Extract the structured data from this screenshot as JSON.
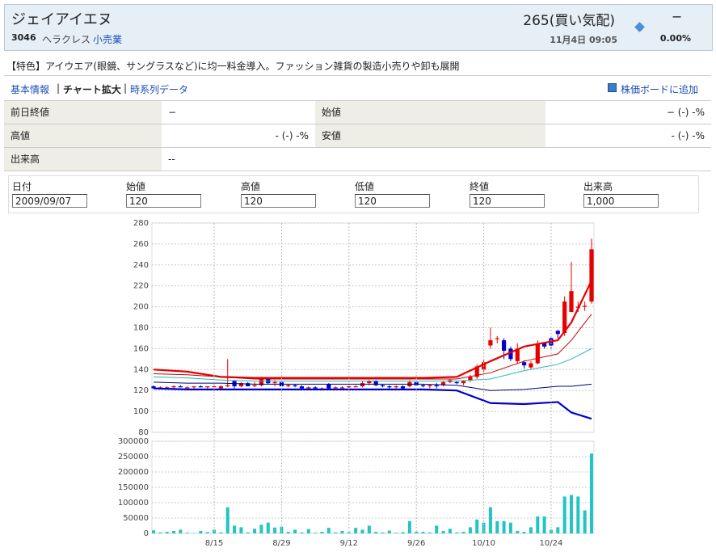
{
  "header": {
    "title": "ジェイアイエヌ",
    "code": "3046",
    "market": "ヘラクレス",
    "sector": "小売業",
    "price": "265(買い気配)",
    "change": "−",
    "datetime": "11月4日 09:05",
    "change_pct": "0.00%"
  },
  "feature": "【特色】アイウエア(眼鏡、サングラスなど)に均一料金導入。ファッション雑貨の製造小売りや卸も展開",
  "tabs": [
    "基本情報",
    "チャート拡大",
    "時系列データ"
  ],
  "add_link": "株価ボードに追加",
  "quote_table": {
    "rows": [
      [
        "前日終値",
        "−",
        "始値",
        "− (-) -%"
      ],
      [
        "高値",
        "- (-) -%",
        "安値",
        "- (-) -%"
      ],
      [
        "出来高",
        "--"
      ]
    ]
  },
  "form": {
    "labels": [
      "日付",
      "始値",
      "高値",
      "低値",
      "終値",
      "出来高"
    ],
    "values": [
      "2009/09/07",
      "120",
      "120",
      "120",
      "120",
      "1,000"
    ]
  },
  "chart_data": [
    {
      "type": "candlestick",
      "up_color": "#e60000",
      "down_color": "#0000cc",
      "grid": true,
      "ylim": [
        80,
        280
      ],
      "yticks": [
        80,
        100,
        120,
        140,
        160,
        180,
        200,
        220,
        240,
        260,
        280
      ],
      "open": [
        124,
        122,
        123,
        123,
        124,
        123,
        123,
        124,
        123,
        124,
        122,
        124,
        129,
        124,
        127,
        124,
        125,
        131,
        127,
        128,
        124,
        125,
        124,
        122,
        123,
        122,
        126,
        123,
        123,
        123,
        124,
        124,
        127,
        129,
        125,
        124,
        123,
        124,
        124,
        128,
        125,
        124,
        125,
        125,
        128,
        128,
        127,
        130,
        133,
        140,
        163,
        170,
        168,
        160,
        148,
        147,
        142,
        146,
        165,
        170,
        177,
        175,
        195,
        200,
        200,
        205
      ],
      "high": [
        125,
        124,
        124,
        125,
        125,
        124,
        124,
        125,
        124,
        126,
        125,
        150,
        130,
        128,
        128,
        128,
        133,
        132,
        130,
        129,
        126,
        126,
        125,
        124,
        124,
        123,
        127,
        124,
        124,
        125,
        125,
        129,
        130,
        130,
        126,
        125,
        125,
        125,
        130,
        129,
        126,
        126,
        127,
        129,
        131,
        129,
        130,
        135,
        145,
        150,
        180,
        172,
        170,
        162,
        165,
        149,
        148,
        168,
        166,
        172,
        178,
        210,
        243,
        205,
        205,
        265
      ],
      "low": [
        122,
        121,
        122,
        122,
        123,
        122,
        122,
        123,
        122,
        123,
        121,
        123,
        122,
        123,
        124,
        123,
        124,
        126,
        124,
        124,
        123,
        123,
        121,
        121,
        121,
        121,
        121,
        122,
        122,
        122,
        123,
        123,
        125,
        124,
        123,
        122,
        122,
        121,
        123,
        124,
        123,
        122,
        122,
        124,
        127,
        126,
        125,
        128,
        131,
        138,
        160,
        165,
        150,
        148,
        146,
        141,
        140,
        145,
        160,
        160,
        170,
        172,
        195,
        195,
        196,
        203
      ],
      "close": [
        122,
        123,
        123,
        124,
        123,
        123,
        124,
        123,
        124,
        124,
        124,
        125,
        124,
        127,
        124,
        125,
        131,
        127,
        128,
        124,
        125,
        124,
        122,
        123,
        122,
        122,
        122,
        123,
        123,
        124,
        124,
        127,
        129,
        125,
        124,
        123,
        124,
        122,
        128,
        125,
        124,
        125,
        124,
        128,
        130,
        127,
        129,
        133,
        143,
        147,
        168,
        170,
        158,
        150,
        160,
        144,
        146,
        165,
        162,
        163,
        174,
        205,
        215,
        200,
        201,
        255
      ],
      "lines": [
        {
          "color": "#e60000",
          "width": 2.2,
          "x": [
            0,
            5,
            10,
            15,
            20,
            25,
            30,
            35,
            40,
            45,
            50,
            55,
            60,
            62,
            65
          ],
          "values": [
            140,
            138,
            133,
            132,
            132,
            132,
            132,
            132,
            132,
            133,
            148,
            162,
            168,
            185,
            225
          ]
        },
        {
          "color": "#cc0000",
          "width": 1,
          "x": [
            0,
            5,
            10,
            15,
            20,
            25,
            30,
            35,
            40,
            45,
            50,
            55,
            60,
            62,
            65
          ],
          "values": [
            136,
            135,
            133,
            131,
            131,
            131,
            131,
            131,
            131,
            131,
            137,
            148,
            155,
            168,
            193
          ]
        },
        {
          "color": "#20b8b8",
          "width": 1,
          "x": [
            0,
            5,
            10,
            15,
            20,
            25,
            30,
            35,
            40,
            45,
            50,
            55,
            60,
            62,
            65
          ],
          "values": [
            133,
            132,
            130,
            129,
            129,
            129,
            129,
            129,
            129,
            129,
            131,
            139,
            145,
            150,
            160
          ]
        },
        {
          "color": "#000080",
          "width": 1,
          "x": [
            0,
            5,
            10,
            15,
            20,
            25,
            30,
            35,
            40,
            45,
            50,
            55,
            60,
            62,
            65
          ],
          "values": [
            128,
            127,
            127,
            126,
            126,
            126,
            126,
            126,
            126,
            125,
            120,
            121,
            124,
            124,
            126
          ]
        },
        {
          "color": "#0000cc",
          "width": 2.2,
          "x": [
            0,
            5,
            10,
            15,
            20,
            25,
            30,
            35,
            40,
            45,
            50,
            55,
            60,
            62,
            65
          ],
          "values": [
            122,
            121,
            121,
            121,
            121,
            121,
            121,
            121,
            121,
            120,
            108,
            107,
            109,
            99,
            93
          ]
        }
      ]
    },
    {
      "type": "bar",
      "color": "#22c4c4",
      "grid": true,
      "ylim": [
        0,
        300000
      ],
      "yticks": [
        0,
        50000,
        100000,
        150000,
        200000,
        250000,
        300000
      ],
      "categories": [
        null,
        null,
        null,
        null,
        null,
        null,
        null,
        null,
        null,
        "8/15",
        null,
        null,
        null,
        null,
        null,
        null,
        null,
        null,
        null,
        "8/29",
        null,
        null,
        null,
        null,
        null,
        null,
        null,
        null,
        null,
        "9/12",
        null,
        null,
        null,
        null,
        null,
        null,
        null,
        null,
        null,
        "9/26",
        null,
        null,
        null,
        null,
        null,
        null,
        null,
        null,
        null,
        "10/10",
        null,
        null,
        null,
        null,
        null,
        null,
        null,
        null,
        null,
        "10/24",
        null,
        null,
        null,
        null,
        null,
        null
      ],
      "values": [
        10000,
        3000,
        5000,
        8000,
        12000,
        2000,
        1000,
        8000,
        4000,
        12000,
        3000,
        85000,
        25000,
        20000,
        3000,
        15000,
        28000,
        35000,
        19000,
        22000,
        5000,
        12000,
        3000,
        14000,
        2000,
        5000,
        18000,
        3000,
        8000,
        4000,
        18000,
        12000,
        25000,
        5000,
        3000,
        9000,
        2000,
        4000,
        40000,
        5000,
        5000,
        3000,
        25000,
        8000,
        15000,
        3000,
        5000,
        20000,
        45000,
        35000,
        85000,
        40000,
        40000,
        35000,
        8000,
        5000,
        20000,
        55000,
        55000,
        12000,
        20000,
        120000,
        125000,
        120000,
        75000,
        260000
      ]
    }
  ]
}
